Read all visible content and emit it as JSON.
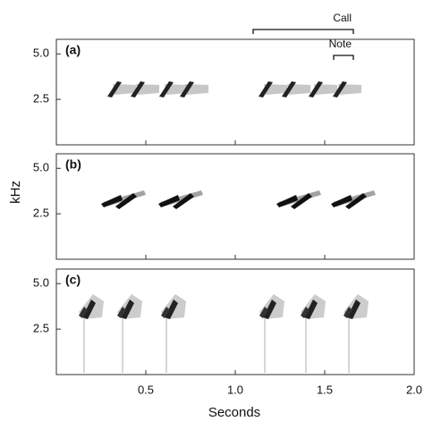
{
  "chart_data": {
    "type": "spectrogram",
    "x_label": "Seconds",
    "y_label": "kHz",
    "xlim": [
      0,
      2
    ],
    "xticks": [
      0.5,
      {
        "value": 1,
        "label": "1.0"
      },
      1.5,
      {
        "value": 2,
        "label": "2.0"
      }
    ],
    "ylim": [
      0,
      5.8
    ],
    "yticks": [
      2.5,
      {
        "value": 5,
        "label": "5.0"
      }
    ],
    "panels": [
      {
        "label": "(a)"
      },
      {
        "label": "(b)"
      },
      {
        "label": "(c)"
      }
    ],
    "annotations": [
      {
        "text": "Call",
        "x": [
          1.1,
          1.66
        ]
      },
      {
        "text": "Note",
        "x": [
          1.55,
          1.66
        ]
      }
    ]
  }
}
